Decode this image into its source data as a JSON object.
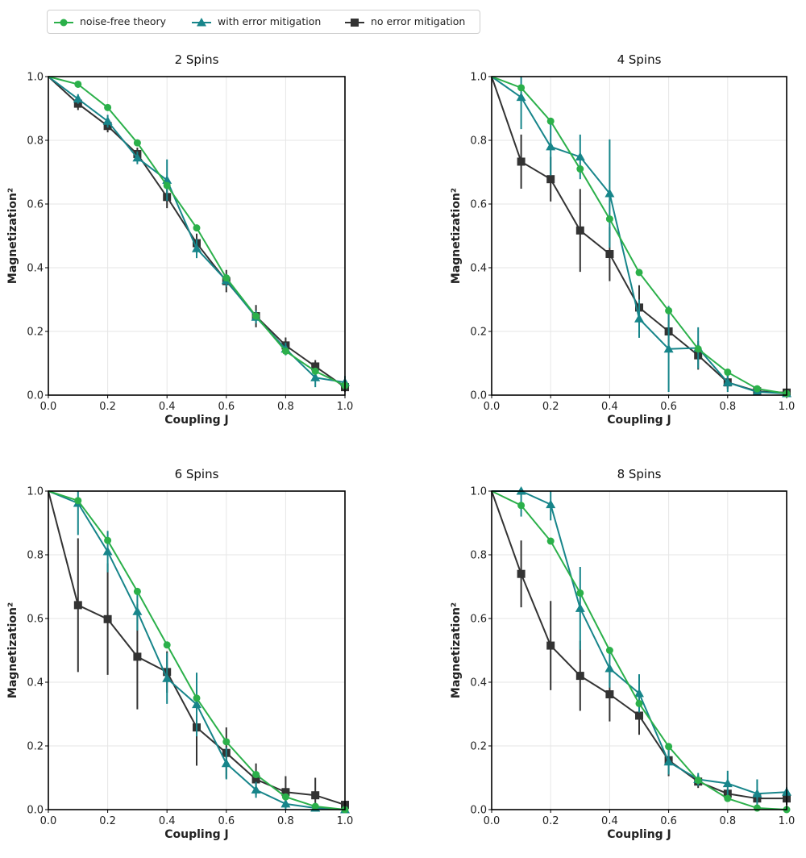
{
  "legend": [
    {
      "label": "noise-free theory",
      "color": "#2bb04a",
      "marker": "circle"
    },
    {
      "label": "with error mitigation",
      "color": "#17858a",
      "marker": "triangle"
    },
    {
      "label": "no error mitigation",
      "color": "#333333",
      "marker": "square"
    }
  ],
  "chart_data": [
    {
      "type": "line",
      "title": "2 Spins",
      "xlabel": "Coupling J",
      "ylabel": "Magnetization²",
      "xlim": [
        0,
        1
      ],
      "ylim": [
        0,
        1
      ],
      "xticks": [
        "0.0",
        "0.2",
        "0.4",
        "0.6",
        "0.8",
        "1.0"
      ],
      "yticks": [
        "0.0",
        "0.2",
        "0.4",
        "0.6",
        "0.8",
        "1.0"
      ],
      "grid": true,
      "x": [
        0.0,
        0.1,
        0.2,
        0.3,
        0.4,
        0.5,
        0.6,
        0.7,
        0.8,
        0.9,
        1.0
      ],
      "series": [
        {
          "name": "noise-free theory",
          "values": [
            1.0,
            0.976,
            0.903,
            0.792,
            0.658,
            0.525,
            0.368,
            0.248,
            0.138,
            0.075,
            0.03
          ]
        },
        {
          "name": "with error mitigation",
          "values": [
            1.0,
            0.93,
            0.86,
            0.745,
            0.675,
            0.46,
            0.36,
            0.245,
            0.145,
            0.055,
            0.04
          ],
          "errors": [
            0,
            0.015,
            0.02,
            0.02,
            0.065,
            0.03,
            0.02,
            0.02,
            0.02,
            0.03,
            0.02
          ]
        },
        {
          "name": "no error mitigation",
          "values": [
            1.0,
            0.915,
            0.845,
            0.757,
            0.622,
            0.477,
            0.358,
            0.248,
            0.156,
            0.09,
            0.025
          ],
          "errors": [
            0,
            0.02,
            0.02,
            0.02,
            0.035,
            0.03,
            0.035,
            0.035,
            0.025,
            0.02,
            0.015
          ]
        }
      ]
    },
    {
      "type": "line",
      "title": "4 Spins",
      "xlabel": "Coupling J",
      "ylabel": "Magnetization²",
      "xlim": [
        0,
        1
      ],
      "ylim": [
        0,
        1
      ],
      "xticks": [
        "0.0",
        "0.2",
        "0.4",
        "0.6",
        "0.8",
        "1.0"
      ],
      "yticks": [
        "0.0",
        "0.2",
        "0.4",
        "0.6",
        "0.8",
        "1.0"
      ],
      "grid": true,
      "x": [
        0.0,
        0.1,
        0.2,
        0.3,
        0.4,
        0.5,
        0.6,
        0.7,
        0.8,
        0.9,
        1.0
      ],
      "series": [
        {
          "name": "noise-free theory",
          "values": [
            1.0,
            0.965,
            0.86,
            0.71,
            0.553,
            0.385,
            0.265,
            0.145,
            0.072,
            0.02,
            0.005
          ]
        },
        {
          "name": "with error mitigation",
          "values": [
            1.0,
            0.935,
            0.78,
            0.748,
            0.633,
            0.24,
            0.145,
            0.148,
            0.04,
            0.01,
            0.005
          ],
          "errors": [
            0,
            0.1,
            0.09,
            0.07,
            0.17,
            0.06,
            0.135,
            0.065,
            0.03,
            0.01,
            0.01
          ]
        },
        {
          "name": "no error mitigation",
          "values": [
            1.0,
            0.733,
            0.678,
            0.517,
            0.443,
            0.275,
            0.2,
            0.125,
            0.04,
            0.012,
            0.008
          ],
          "errors": [
            0,
            0.085,
            0.07,
            0.13,
            0.085,
            0.07,
            0.065,
            0.045,
            0.02,
            0.01,
            0.008
          ]
        }
      ]
    },
    {
      "type": "line",
      "title": "6 Spins",
      "xlabel": "Coupling J",
      "ylabel": "Magnetization²",
      "xlim": [
        0,
        1
      ],
      "ylim": [
        0,
        1
      ],
      "xticks": [
        "0.0",
        "0.2",
        "0.4",
        "0.6",
        "0.8",
        "1.0"
      ],
      "yticks": [
        "0.0",
        "0.2",
        "0.4",
        "0.6",
        "0.8",
        "1.0"
      ],
      "grid": true,
      "x": [
        0.0,
        0.1,
        0.2,
        0.3,
        0.4,
        0.5,
        0.6,
        0.7,
        0.8,
        0.9,
        1.0
      ],
      "series": [
        {
          "name": "noise-free theory",
          "values": [
            1.0,
            0.97,
            0.845,
            0.685,
            0.517,
            0.35,
            0.213,
            0.11,
            0.04,
            0.01,
            0.0
          ]
        },
        {
          "name": "with error mitigation",
          "values": [
            1.0,
            0.962,
            0.81,
            0.622,
            0.412,
            0.33,
            0.145,
            0.062,
            0.018,
            0.005,
            0.0
          ],
          "errors": [
            0,
            0.1,
            0.065,
            0.06,
            0.08,
            0.1,
            0.05,
            0.025,
            0.02,
            0.01,
            0.005
          ]
        },
        {
          "name": "no error mitigation",
          "values": [
            1.0,
            0.642,
            0.598,
            0.48,
            0.432,
            0.258,
            0.178,
            0.095,
            0.055,
            0.045,
            0.015
          ],
          "errors": [
            0,
            0.21,
            0.175,
            0.165,
            0.065,
            0.12,
            0.08,
            0.05,
            0.05,
            0.055,
            0.01
          ]
        }
      ]
    },
    {
      "type": "line",
      "title": "8 Spins",
      "xlabel": "Coupling J",
      "ylabel": "Magnetization²",
      "xlim": [
        0,
        1
      ],
      "ylim": [
        0,
        1
      ],
      "xticks": [
        "0.0",
        "0.2",
        "0.4",
        "0.6",
        "0.8",
        "1.0"
      ],
      "yticks": [
        "0.0",
        "0.2",
        "0.4",
        "0.6",
        "0.8",
        "1.0"
      ],
      "grid": true,
      "x": [
        0.0,
        0.1,
        0.2,
        0.3,
        0.4,
        0.5,
        0.6,
        0.7,
        0.8,
        0.9,
        1.0
      ],
      "series": [
        {
          "name": "noise-free theory",
          "values": [
            1.0,
            0.955,
            0.843,
            0.68,
            0.5,
            0.333,
            0.198,
            0.092,
            0.035,
            0.005,
            0.0
          ]
        },
        {
          "name": "with error mitigation",
          "values": [
            1.0,
            1.0,
            0.958,
            0.632,
            0.443,
            0.365,
            0.15,
            0.095,
            0.082,
            0.05,
            0.055
          ],
          "errors": [
            0,
            0.08,
            0.05,
            0.13,
            0.06,
            0.06,
            0.04,
            0.02,
            0.04,
            0.045,
            0.015
          ]
        },
        {
          "name": "no error mitigation",
          "values": [
            1.0,
            0.74,
            0.515,
            0.42,
            0.362,
            0.295,
            0.155,
            0.088,
            0.05,
            0.035,
            0.035
          ],
          "errors": [
            0,
            0.105,
            0.14,
            0.11,
            0.085,
            0.06,
            0.05,
            0.02,
            0.01,
            0.01,
            0.02
          ]
        }
      ]
    }
  ]
}
